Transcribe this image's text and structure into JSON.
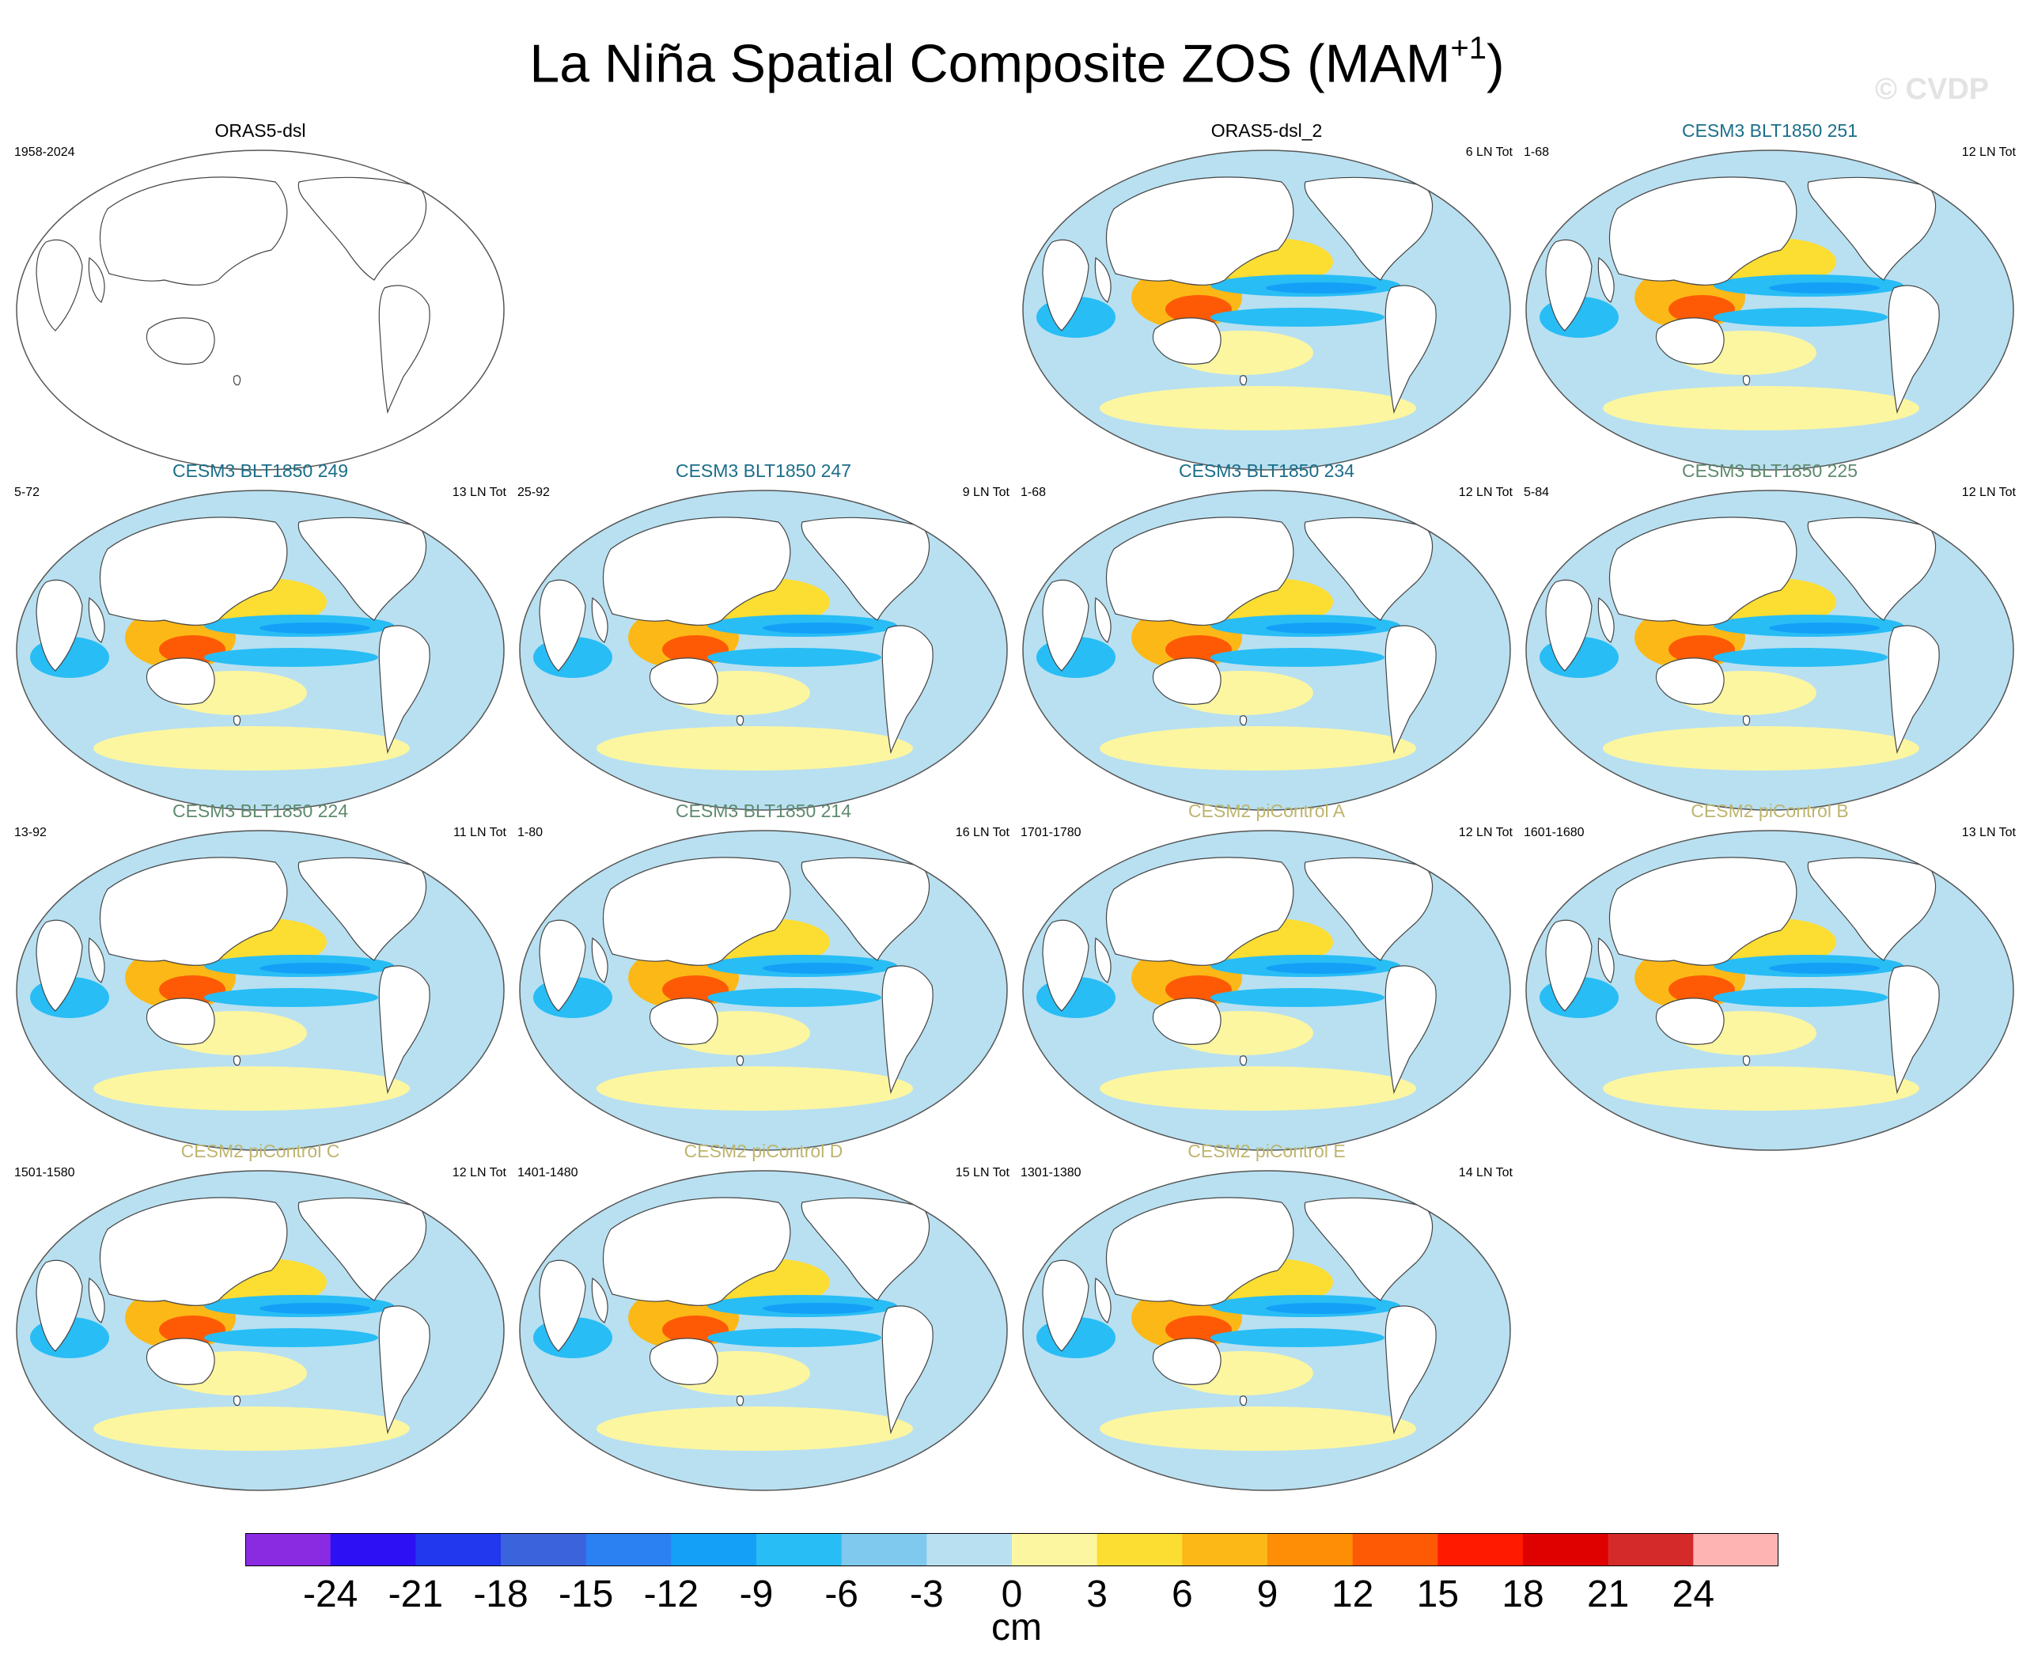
{
  "figure": {
    "title_main": "La Niña Spatial Composite ZOS (MAM",
    "title_sup": "+1",
    "title_close": ")",
    "watermark": "© CVDP"
  },
  "panels": [
    {
      "title": "ORAS5-dsl",
      "years": "1958-2024",
      "count": "",
      "title_style": "obs",
      "has_data": false
    },
    {
      "title": "ORAS5-dsl_2",
      "years": "",
      "count": "6 LN Tot",
      "title_style": "obs",
      "has_data": true
    },
    {
      "title": "CESM3 BLT1850 251",
      "years": "1-68",
      "count": "12 LN Tot",
      "title_style": "teal",
      "has_data": true
    },
    {
      "title": "CESM3 BLT1850 249",
      "years": "5-72",
      "count": "13 LN Tot",
      "title_style": "teal",
      "has_data": true
    },
    {
      "title": "CESM3 BLT1850 247",
      "years": "25-92",
      "count": "9 LN Tot",
      "title_style": "teal",
      "has_data": true
    },
    {
      "title": "CESM3 BLT1850 234",
      "years": "1-68",
      "count": "12 LN Tot",
      "title_style": "teal",
      "has_data": true
    },
    {
      "title": "CESM3 BLT1850 225",
      "years": "5-84",
      "count": "12 LN Tot",
      "title_style": "sage",
      "has_data": true
    },
    {
      "title": "CESM3 BLT1850 224",
      "years": "13-92",
      "count": "11 LN Tot",
      "title_style": "sage",
      "has_data": true
    },
    {
      "title": "CESM3 BLT1850 214",
      "years": "1-80",
      "count": "16 LN Tot",
      "title_style": "sage",
      "has_data": true
    },
    {
      "title": "CESM2 piControl A",
      "years": "1701-1780",
      "count": "12 LN Tot",
      "title_style": "olive",
      "has_data": true
    },
    {
      "title": "CESM2 piControl B",
      "years": "1601-1680",
      "count": "13 LN Tot",
      "title_style": "olive",
      "has_data": true
    },
    {
      "title": "CESM2 piControl C",
      "years": "1501-1580",
      "count": "12 LN Tot",
      "title_style": "olive",
      "has_data": true
    },
    {
      "title": "CESM2 piControl D",
      "years": "1401-1480",
      "count": "15 LN Tot",
      "title_style": "olive",
      "has_data": true
    },
    {
      "title": "CESM2 piControl E",
      "years": "1301-1380",
      "count": "14 LN Tot",
      "title_style": "olive",
      "has_data": true
    }
  ],
  "colorbar": {
    "units": "cm",
    "labels": [
      "-24",
      "-21",
      "-18",
      "-15",
      "-12",
      "-9",
      "-6",
      "-3",
      "0",
      "3",
      "6",
      "9",
      "12",
      "15",
      "18",
      "21",
      "24"
    ],
    "colors": [
      "#8a2be2",
      "#2e10f5",
      "#2238ee",
      "#3b63dc",
      "#2b80f2",
      "#14a0f7",
      "#28bdf5",
      "#80c9ee",
      "#b8e0f1",
      "#fdf6a0",
      "#fcdd32",
      "#fcb817",
      "#fd8e06",
      "#fe5a05",
      "#ff1a00",
      "#df0000",
      "#d42a2a",
      "#ffb4b4"
    ]
  }
}
